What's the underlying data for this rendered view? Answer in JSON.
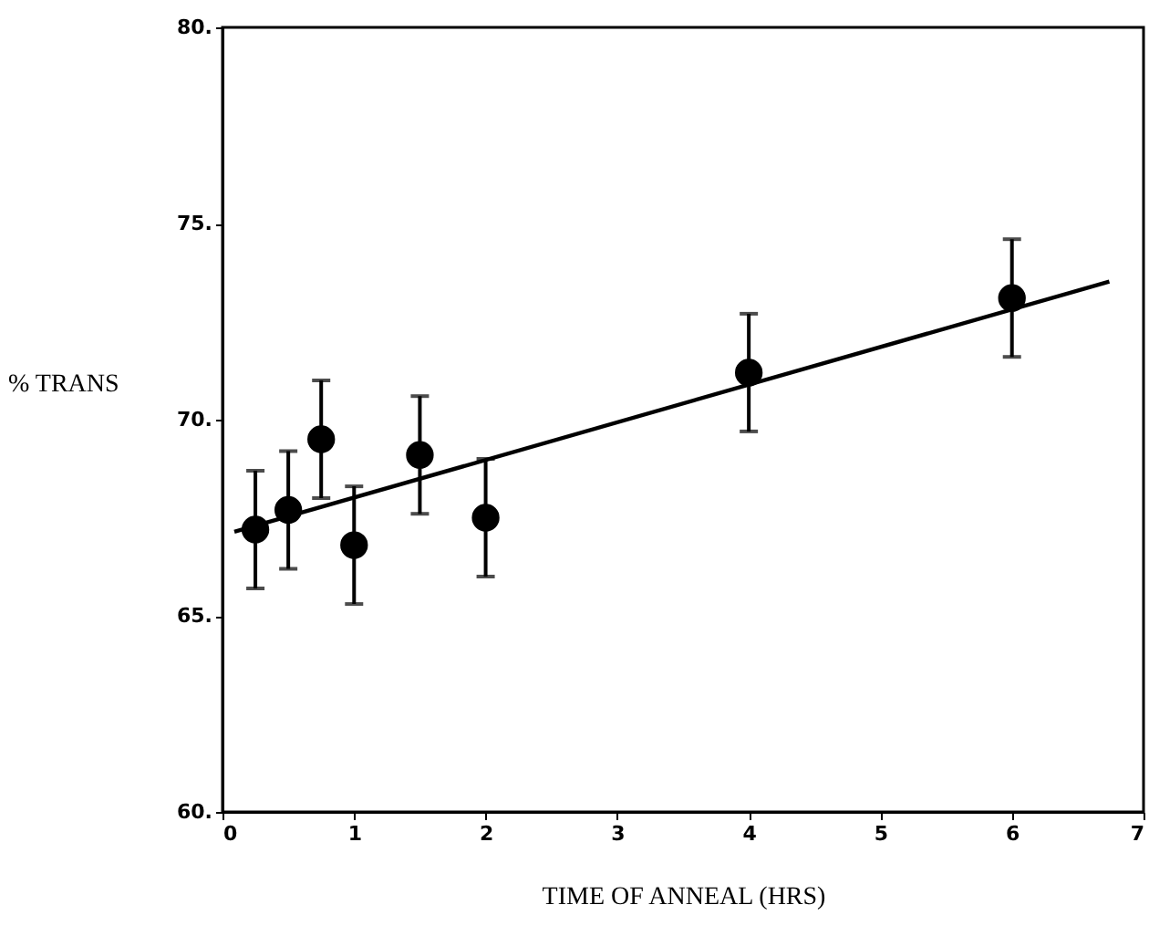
{
  "chart_data": {
    "type": "scatter",
    "xlabel": "TIME OF ANNEAL (HRS)",
    "ylabel": "% TRANS",
    "xlim": [
      0,
      7
    ],
    "xticks": [
      0,
      1,
      2,
      3,
      4,
      5,
      6,
      7
    ],
    "ylim": [
      60,
      80
    ],
    "yticks": [
      {
        "value": 60,
        "label": "60."
      },
      {
        "value": 65,
        "label": "65."
      },
      {
        "value": 70,
        "label": "70."
      },
      {
        "value": 75,
        "label": "75."
      },
      {
        "value": 80,
        "label": "80."
      }
    ],
    "marker": "circle",
    "series": [
      {
        "color": "#000000",
        "x": [
          0.25,
          0.5,
          0.75,
          1,
          1.5,
          2,
          4,
          6
        ],
        "values": [
          67.2,
          67.7,
          69.5,
          66.8,
          69.1,
          67.5,
          71.2,
          73.1
        ],
        "errors": [
          1.5,
          1.5,
          1.5,
          1.5,
          1.5,
          1.5,
          1.5,
          1.5
        ]
      },
      {
        "type": "line",
        "color": "#000000",
        "line_style": "solid",
        "marker": "none",
        "x": [
          0.09,
          6.74
        ],
        "values": [
          67.14,
          73.52
        ]
      }
    ]
  }
}
